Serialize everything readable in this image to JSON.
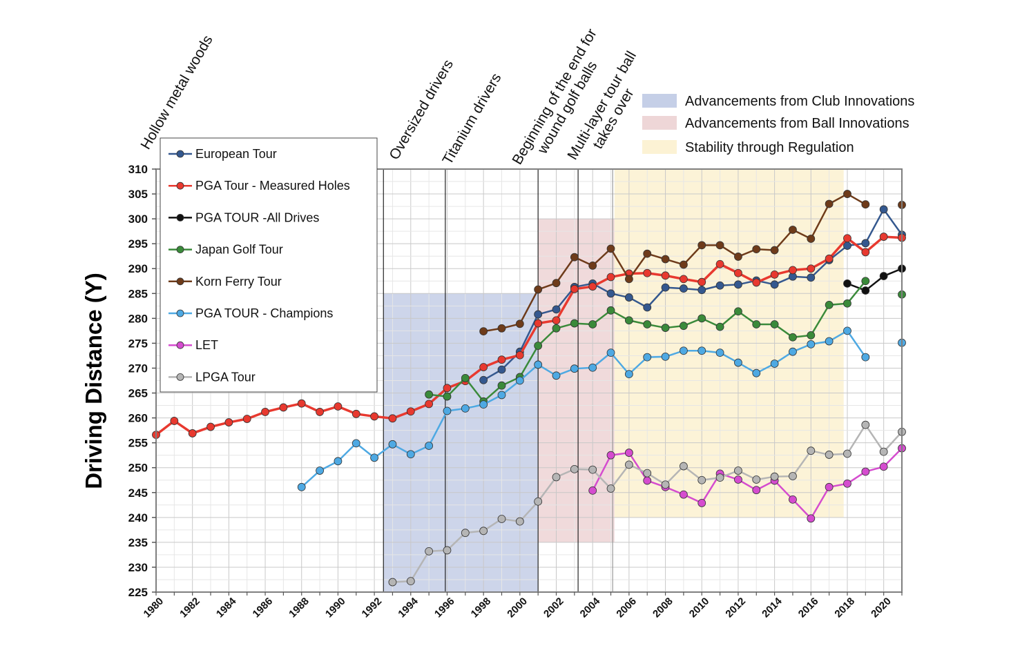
{
  "chart_data": {
    "type": "line",
    "title": "",
    "xlabel": "",
    "ylabel": "Driving Distance (Y)",
    "xlim": [
      1980,
      2021
    ],
    "ylim": [
      225,
      310
    ],
    "x_ticks": [
      1980,
      1982,
      1984,
      1986,
      1988,
      1990,
      1992,
      1994,
      1996,
      1998,
      2000,
      2002,
      2004,
      2006,
      2008,
      2010,
      2012,
      2014,
      2016,
      2018,
      2020
    ],
    "y_ticks": [
      225,
      230,
      235,
      240,
      245,
      250,
      255,
      260,
      265,
      270,
      275,
      280,
      285,
      290,
      295,
      300,
      305,
      310
    ],
    "grid": true,
    "shaded_regions": [
      {
        "name": "Advancements from Club Innovations",
        "x": [
          1992.5,
          2001
        ],
        "y": [
          225,
          285
        ],
        "color": "#6f88c4"
      },
      {
        "name": "Advancements from Ball Innovations",
        "x": [
          2001,
          2005.2
        ],
        "y": [
          235,
          300
        ],
        "color": "#d9a3a6"
      },
      {
        "name": "Stability through Regulation",
        "x": [
          2005.2,
          2017.8
        ],
        "y": [
          240,
          310
        ],
        "color": "#fbf0cd"
      }
    ],
    "annotations": [
      {
        "text": "Hollow metal woods",
        "x": 1980,
        "line": false
      },
      {
        "text": "Oversized drivers",
        "x": 1992.5,
        "line": true
      },
      {
        "text": "Titanium drivers",
        "x": 1995.9,
        "line": true
      },
      {
        "text": "Beginning of the end for wound golf balls",
        "x": 2001,
        "line": true
      },
      {
        "text": "Multi-layer tour ball takes over",
        "x": 2003.2,
        "line": true
      },
      {
        "text": "",
        "x": 2005.1,
        "line": true
      }
    ],
    "series": [
      {
        "name": "European Tour",
        "color": "#34588f",
        "points": [
          [
            1998,
            267.6
          ],
          [
            1999,
            269.7
          ],
          [
            2000,
            273.3
          ],
          [
            2001,
            280.8
          ],
          [
            2002,
            281.8
          ],
          [
            2003,
            286.3
          ],
          [
            2004,
            287.0
          ],
          [
            2005,
            285.0
          ],
          [
            2006,
            284.2
          ],
          [
            2007,
            282.2
          ],
          [
            2008,
            286.2
          ],
          [
            2009,
            286.0
          ],
          [
            2010,
            285.7
          ],
          [
            2011,
            286.6
          ],
          [
            2012,
            286.8
          ],
          [
            2013,
            287.6
          ],
          [
            2014,
            286.8
          ],
          [
            2015,
            288.4
          ],
          [
            2016,
            288.2
          ],
          [
            2017,
            291.7
          ],
          [
            2018,
            294.6
          ],
          [
            2019,
            295.1
          ],
          [
            2020,
            301.9
          ],
          [
            2021,
            296.8
          ]
        ]
      },
      {
        "name": "PGA Tour - Measured Holes",
        "color": "#e8392f",
        "points": [
          [
            1980,
            256.6
          ],
          [
            1981,
            259.4
          ],
          [
            1982,
            256.9
          ],
          [
            1983,
            258.2
          ],
          [
            1984,
            259.1
          ],
          [
            1985,
            259.8
          ],
          [
            1986,
            261.2
          ],
          [
            1987,
            262.1
          ],
          [
            1988,
            262.9
          ],
          [
            1989,
            261.2
          ],
          [
            1990,
            262.3
          ],
          [
            1991,
            260.8
          ],
          [
            1992,
            260.3
          ],
          [
            1993,
            259.9
          ],
          [
            1994,
            261.3
          ],
          [
            1995,
            262.8
          ],
          [
            1996,
            266.0
          ],
          [
            1997,
            267.4
          ],
          [
            1998,
            270.2
          ],
          [
            1999,
            271.7
          ],
          [
            2000,
            272.6
          ],
          [
            2001,
            279.0
          ],
          [
            2002,
            279.6
          ],
          [
            2003,
            285.9
          ],
          [
            2004,
            286.4
          ],
          [
            2005,
            288.3
          ],
          [
            2006,
            289.0
          ],
          [
            2007,
            289.1
          ],
          [
            2008,
            288.6
          ],
          [
            2009,
            287.9
          ],
          [
            2010,
            287.3
          ],
          [
            2011,
            290.9
          ],
          [
            2012,
            289.1
          ],
          [
            2013,
            287.2
          ],
          [
            2014,
            288.8
          ],
          [
            2015,
            289.7
          ],
          [
            2016,
            290.0
          ],
          [
            2017,
            292.0
          ],
          [
            2018,
            296.1
          ],
          [
            2019,
            293.3
          ],
          [
            2020,
            296.4
          ],
          [
            2021,
            296.2
          ]
        ]
      },
      {
        "name": "PGA TOUR -All Drives",
        "color": "#111111",
        "points": [
          [
            2018,
            287.0
          ],
          [
            2019,
            285.6
          ],
          [
            2020,
            288.5
          ],
          [
            2021,
            290.0
          ]
        ]
      },
      {
        "name": "Japan Golf Tour",
        "color": "#3a8a3a",
        "points": [
          [
            1995,
            264.7
          ],
          [
            1996,
            264.3
          ],
          [
            1997,
            268.0
          ],
          [
            1998,
            263.3
          ],
          [
            1999,
            266.5
          ],
          [
            2000,
            268.2
          ],
          [
            2001,
            274.5
          ],
          [
            2002,
            278.0
          ],
          [
            2003,
            279.0
          ],
          [
            2004,
            278.8
          ],
          [
            2005,
            281.6
          ],
          [
            2006,
            279.6
          ],
          [
            2007,
            278.8
          ],
          [
            2008,
            278.1
          ],
          [
            2009,
            278.5
          ],
          [
            2010,
            280.0
          ],
          [
            2011,
            278.3
          ],
          [
            2012,
            281.4
          ],
          [
            2013,
            278.8
          ],
          [
            2014,
            278.8
          ],
          [
            2015,
            276.2
          ],
          [
            2016,
            276.6
          ],
          [
            2017,
            282.7
          ],
          [
            2018,
            283.0
          ],
          [
            2019,
            287.5
          ],
          [
            2021,
            284.8
          ]
        ]
      },
      {
        "name": "Korn Ferry Tour",
        "color": "#6e3b1a",
        "points": [
          [
            1998,
            277.4
          ],
          [
            1999,
            278.0
          ],
          [
            2000,
            278.9
          ],
          [
            2001,
            285.8
          ],
          [
            2002,
            287.1
          ],
          [
            2003,
            292.3
          ],
          [
            2004,
            290.6
          ],
          [
            2005,
            294.0
          ],
          [
            2006,
            287.9
          ],
          [
            2007,
            293.0
          ],
          [
            2008,
            291.9
          ],
          [
            2009,
            290.8
          ],
          [
            2010,
            294.7
          ],
          [
            2011,
            294.7
          ],
          [
            2012,
            292.4
          ],
          [
            2013,
            293.9
          ],
          [
            2014,
            293.7
          ],
          [
            2015,
            297.8
          ],
          [
            2016,
            296.0
          ],
          [
            2017,
            303.0
          ],
          [
            2018,
            305.0
          ],
          [
            2019,
            302.9
          ],
          [
            2021,
            302.8
          ]
        ]
      },
      {
        "name": "PGA TOUR - Champions",
        "color": "#4ea9e3",
        "points": [
          [
            1988,
            246.1
          ],
          [
            1989,
            249.4
          ],
          [
            1990,
            251.3
          ],
          [
            1991,
            254.9
          ],
          [
            1992,
            252.0
          ],
          [
            1993,
            254.7
          ],
          [
            1994,
            252.7
          ],
          [
            1995,
            254.4
          ],
          [
            1996,
            261.4
          ],
          [
            1997,
            261.9
          ],
          [
            1998,
            262.7
          ],
          [
            1999,
            264.6
          ],
          [
            2000,
            267.5
          ],
          [
            2001,
            270.7
          ],
          [
            2002,
            268.5
          ],
          [
            2003,
            269.9
          ],
          [
            2004,
            270.1
          ],
          [
            2005,
            273.1
          ],
          [
            2006,
            268.8
          ],
          [
            2007,
            272.2
          ],
          [
            2008,
            272.3
          ],
          [
            2009,
            273.5
          ],
          [
            2010,
            273.5
          ],
          [
            2011,
            273.1
          ],
          [
            2012,
            271.1
          ],
          [
            2013,
            269.0
          ],
          [
            2014,
            270.9
          ],
          [
            2015,
            273.3
          ],
          [
            2016,
            274.8
          ],
          [
            2017,
            275.4
          ],
          [
            2018,
            277.5
          ],
          [
            2019,
            272.2
          ],
          [
            2021,
            275.1
          ]
        ]
      },
      {
        "name": "LET",
        "color": "#d54ccf",
        "points": [
          [
            2004,
            245.4
          ],
          [
            2005,
            252.5
          ],
          [
            2006,
            253.0
          ],
          [
            2007,
            247.4
          ],
          [
            2008,
            246.1
          ],
          [
            2009,
            244.6
          ],
          [
            2010,
            242.9
          ],
          [
            2011,
            248.8
          ],
          [
            2012,
            247.6
          ],
          [
            2013,
            245.5
          ],
          [
            2014,
            247.4
          ],
          [
            2015,
            243.6
          ],
          [
            2016,
            239.8
          ],
          [
            2017,
            246.1
          ],
          [
            2018,
            246.8
          ],
          [
            2019,
            249.2
          ],
          [
            2020,
            250.2
          ],
          [
            2021,
            253.9
          ]
        ]
      },
      {
        "name": "LPGA Tour",
        "color": "#b5b5b5",
        "points": [
          [
            1993,
            227.0
          ],
          [
            1994,
            227.2
          ],
          [
            1995,
            233.2
          ],
          [
            1996,
            233.4
          ],
          [
            1997,
            236.9
          ],
          [
            1998,
            237.3
          ],
          [
            1999,
            239.7
          ],
          [
            2000,
            239.2
          ],
          [
            2001,
            243.2
          ],
          [
            2002,
            248.1
          ],
          [
            2003,
            249.7
          ],
          [
            2004,
            249.6
          ],
          [
            2005,
            245.8
          ],
          [
            2006,
            250.6
          ],
          [
            2007,
            248.9
          ],
          [
            2008,
            246.6
          ],
          [
            2009,
            250.3
          ],
          [
            2010,
            247.5
          ],
          [
            2011,
            248.0
          ],
          [
            2012,
            249.4
          ],
          [
            2013,
            247.6
          ],
          [
            2014,
            248.2
          ],
          [
            2015,
            248.3
          ],
          [
            2016,
            253.4
          ],
          [
            2017,
            252.6
          ],
          [
            2018,
            252.8
          ],
          [
            2019,
            258.6
          ],
          [
            2020,
            253.2
          ],
          [
            2021,
            257.2
          ]
        ]
      }
    ]
  }
}
